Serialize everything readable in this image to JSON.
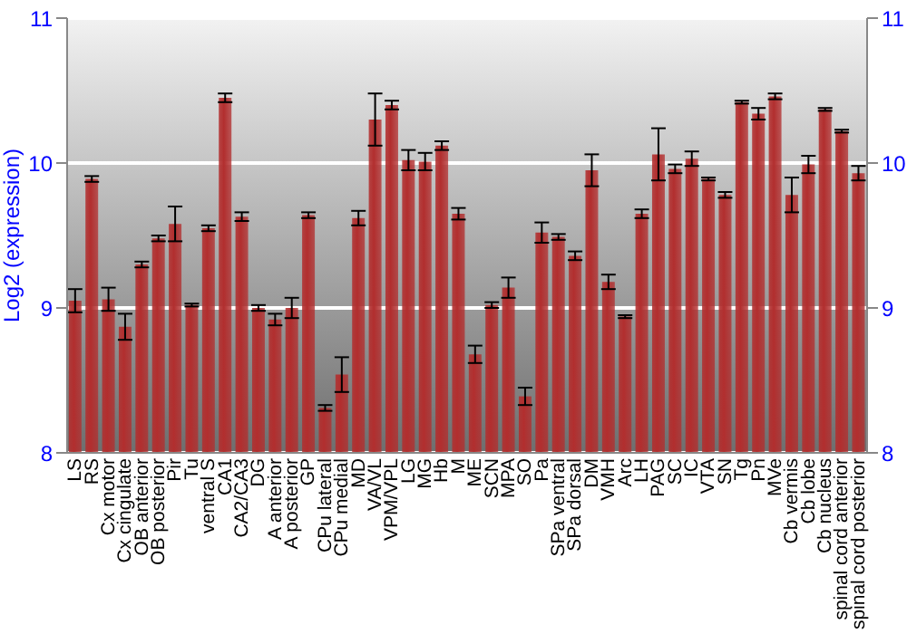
{
  "chart_data": {
    "type": "bar",
    "ylabel": "Log2 (expression)",
    "categories": [
      "LS",
      "RS",
      "Cx motor",
      "Cx cingulate",
      "OB anterior",
      "OB posterior",
      "Pir",
      "Tu",
      "ventral S",
      "CA1",
      "CA2/CA3",
      "DG",
      "A anterior",
      "A posterior",
      "GP",
      "CPu lateral",
      "CPu medial",
      "MD",
      "VA/VL",
      "VPM/VPL",
      "LG",
      "MG",
      "Hb",
      "M",
      "ME",
      "SCN",
      "MPA",
      "SO",
      "Pa",
      "SPa ventral",
      "SPa dorsal",
      "DM",
      "VMH",
      "Arc",
      "LH",
      "PAG",
      "SC",
      "IC",
      "VTA",
      "SN",
      "Tg",
      "Pn",
      "MVe",
      "Cb vermis",
      "Cb lobe",
      "Cb nucleus",
      "spinal cord anterior",
      "spinal cord posterior"
    ],
    "values": [
      9.05,
      9.89,
      9.06,
      8.87,
      9.3,
      9.48,
      9.58,
      9.02,
      9.55,
      10.45,
      9.63,
      9.0,
      8.92,
      9.0,
      9.64,
      8.31,
      8.54,
      9.62,
      10.3,
      10.4,
      10.02,
      10.01,
      10.12,
      9.65,
      8.68,
      9.02,
      9.14,
      8.39,
      9.52,
      9.49,
      9.36,
      9.95,
      9.18,
      8.94,
      9.65,
      10.06,
      9.96,
      10.03,
      9.89,
      9.78,
      10.42,
      10.34,
      10.46,
      9.78,
      9.99,
      10.37,
      10.22,
      9.93
    ],
    "errors": [
      0.08,
      0.02,
      0.08,
      0.09,
      0.02,
      0.02,
      0.12,
      0.01,
      0.02,
      0.03,
      0.03,
      0.02,
      0.04,
      0.07,
      0.02,
      0.02,
      0.12,
      0.05,
      0.18,
      0.03,
      0.07,
      0.06,
      0.03,
      0.04,
      0.06,
      0.02,
      0.07,
      0.06,
      0.07,
      0.02,
      0.03,
      0.11,
      0.05,
      0.01,
      0.03,
      0.18,
      0.03,
      0.05,
      0.01,
      0.02,
      0.01,
      0.04,
      0.02,
      0.12,
      0.06,
      0.01,
      0.01,
      0.05
    ],
    "color": "#b22e2e",
    "ylim": [
      8,
      11
    ],
    "yticks": [
      8,
      9,
      10,
      11
    ],
    "y2lim": [
      8,
      11
    ],
    "y2ticks": [
      8,
      9,
      10,
      11
    ],
    "grid": "y"
  }
}
